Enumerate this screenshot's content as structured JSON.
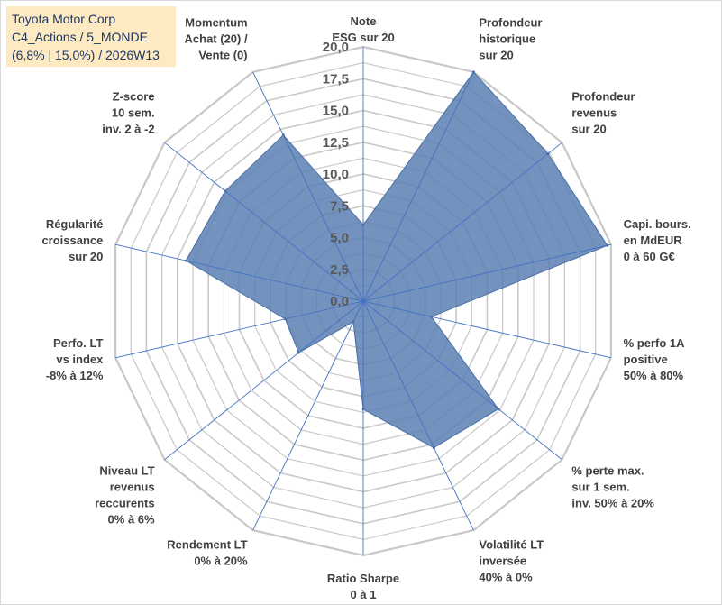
{
  "chart_data": {
    "type": "radar",
    "title_lines": [
      "Toyota Motor Corp",
      "C4_Actions / 5_MONDE",
      "(6,8% | 15,0%) / 2026W13"
    ],
    "rmin": 0,
    "rmax": 20,
    "ticks": [
      "0,0",
      "2,5",
      "5,0",
      "7,5",
      "10,0",
      "12,5",
      "15,0",
      "17,5",
      "20,0"
    ],
    "grid_levels": 16,
    "colors": {
      "fill": "#5b7fb3",
      "stroke": "#4a6fa5",
      "axis": "#4472c4",
      "grid": "#c8c8c8"
    },
    "categories": [
      [
        "Note",
        "ESG sur 20"
      ],
      [
        "Profondeur",
        "historique",
        "sur 20"
      ],
      [
        "Profondeur",
        "revenus",
        "sur 20"
      ],
      [
        "Capi. bours.",
        "en MdEUR",
        "0 à 60 G€"
      ],
      [
        "% perfo 1A",
        "positive",
        "50% à 80%"
      ],
      [
        "% perte max.",
        "sur 1 sem.",
        "inv. 50% à 20%"
      ],
      [
        "Volatilité LT",
        "inversée",
        "40% à 0%"
      ],
      [
        "Ratio Sharpe",
        "0 à 1"
      ],
      [
        "Rendement LT",
        "0% à 20%"
      ],
      [
        "Niveau LT",
        "revenus",
        "reccurents",
        "0% à 6%"
      ],
      [
        "Perfo. LT",
        "vs index",
        "-8% à 12%"
      ],
      [
        "Régularité",
        "croissance",
        "sur 20"
      ],
      [
        "Z-score",
        "10 sem.",
        "inv. 2 à -2"
      ],
      [
        "Momentum",
        "Achat (20) /",
        "Vente (0)"
      ]
    ],
    "values": [
      6.0,
      20.0,
      18.6,
      19.7,
      5.5,
      13.6,
      12.8,
      8.5,
      1.8,
      6.5,
      6.3,
      14.3,
      13.9,
      14.5
    ]
  }
}
